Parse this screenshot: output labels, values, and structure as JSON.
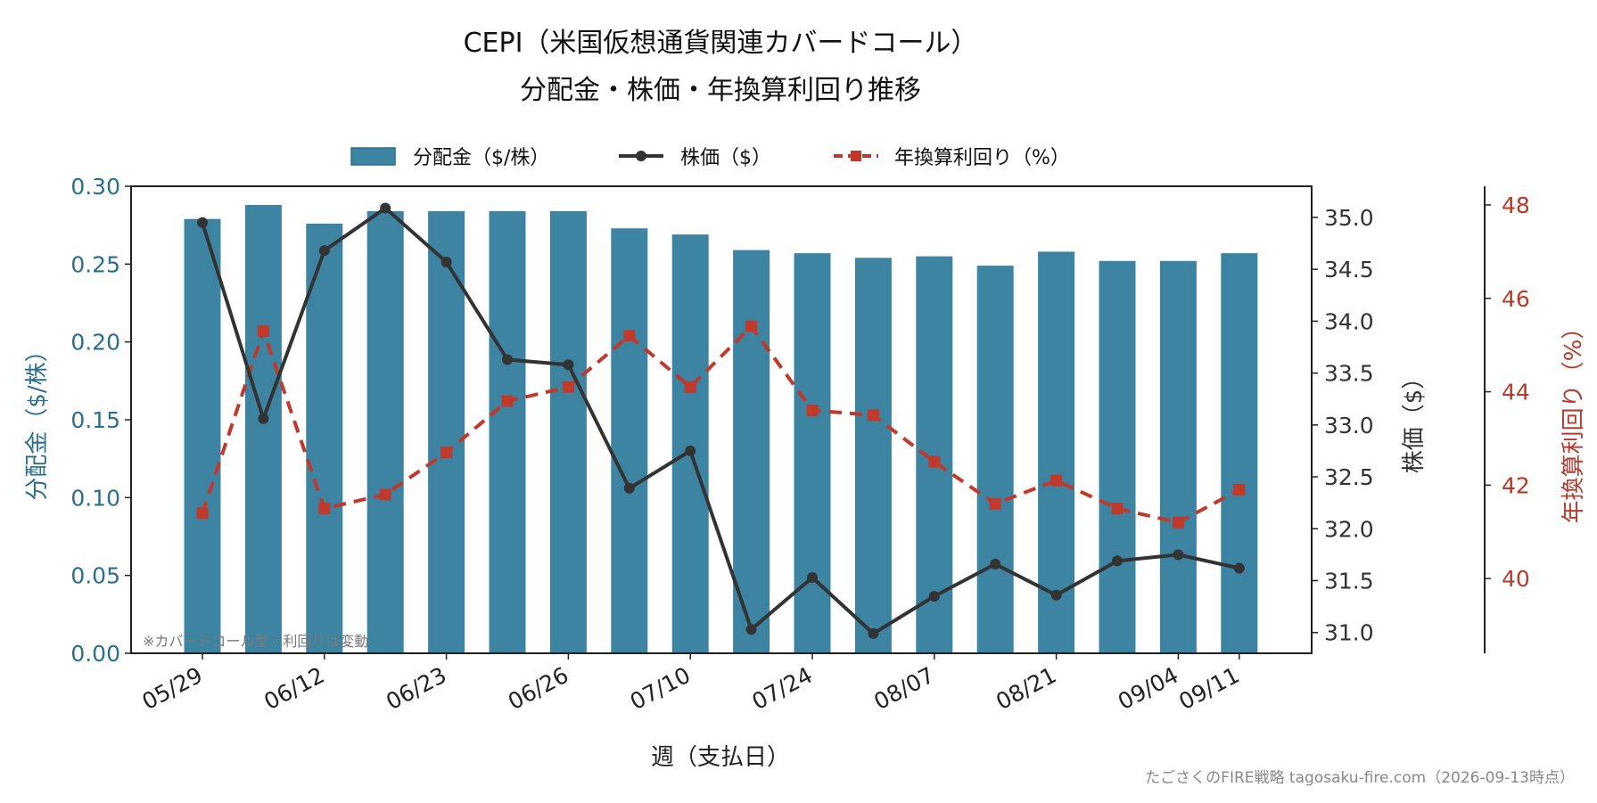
{
  "chart_data": {
    "type": "bar",
    "title_line1": "CEPI（米国仮想通貨関連カバードコール）",
    "title_line2": "分配金・株価・年換算利回り推移",
    "xlabel": "週（支払日）",
    "ylabel_left": "分配金（$/株）",
    "ylabel_right": "株価（$）",
    "ylabel_far": "年換算利回り（%）",
    "legend": {
      "bar": "分配金（$/株）",
      "price": "株価（$）",
      "yield": "年換算利回り（%）"
    },
    "x_tick_labels": [
      "05/29",
      "06/12",
      "06/23",
      "06/26",
      "07/10",
      "07/24",
      "08/07",
      "08/21",
      "09/04",
      "09/11"
    ],
    "x_tick_index": [
      0,
      2,
      4,
      6,
      8,
      10,
      12,
      14,
      16,
      17
    ],
    "dividend": [
      0.279,
      0.288,
      0.276,
      0.284,
      0.284,
      0.284,
      0.284,
      0.273,
      0.269,
      0.259,
      0.257,
      0.254,
      0.255,
      0.249,
      0.258,
      0.252,
      0.252,
      0.257
    ],
    "price": [
      34.95,
      33.06,
      34.68,
      35.09,
      34.57,
      33.63,
      33.58,
      32.39,
      32.75,
      31.03,
      31.53,
      30.99,
      31.35,
      31.66,
      31.36,
      31.69,
      31.75,
      31.62
    ],
    "yield_pct": [
      41.4,
      45.3,
      41.5,
      41.8,
      42.7,
      43.8,
      44.1,
      45.2,
      44.1,
      45.4,
      43.6,
      43.5,
      42.5,
      41.6,
      42.1,
      41.5,
      41.2,
      41.9
    ],
    "ylim_left": [
      0,
      0.3
    ],
    "ylim_right": [
      30.8,
      35.3
    ],
    "ylim_far": [
      38.4,
      48.4
    ],
    "yticks_left": [
      "0.00",
      "0.05",
      "0.10",
      "0.15",
      "0.20",
      "0.25",
      "0.30"
    ],
    "yticks_right": [
      "31.0",
      "31.5",
      "32.0",
      "32.5",
      "33.0",
      "33.5",
      "34.0",
      "34.5",
      "35.0"
    ],
    "yticks_far": [
      "40",
      "42",
      "44",
      "46",
      "48"
    ],
    "legend_placement": "top-center",
    "grid": false
  },
  "annotations": {
    "note": "※カバードコール型・利回りは変動",
    "footer": "たごさくのFIRE戦略 tagosaku-fire.com（2026-09-13時点）"
  },
  "colors": {
    "bar": "#3d84a3",
    "price": "#333333",
    "yield": "#c0392b",
    "left_axis": "#2a6f8f",
    "far_axis": "#b83a2b"
  }
}
